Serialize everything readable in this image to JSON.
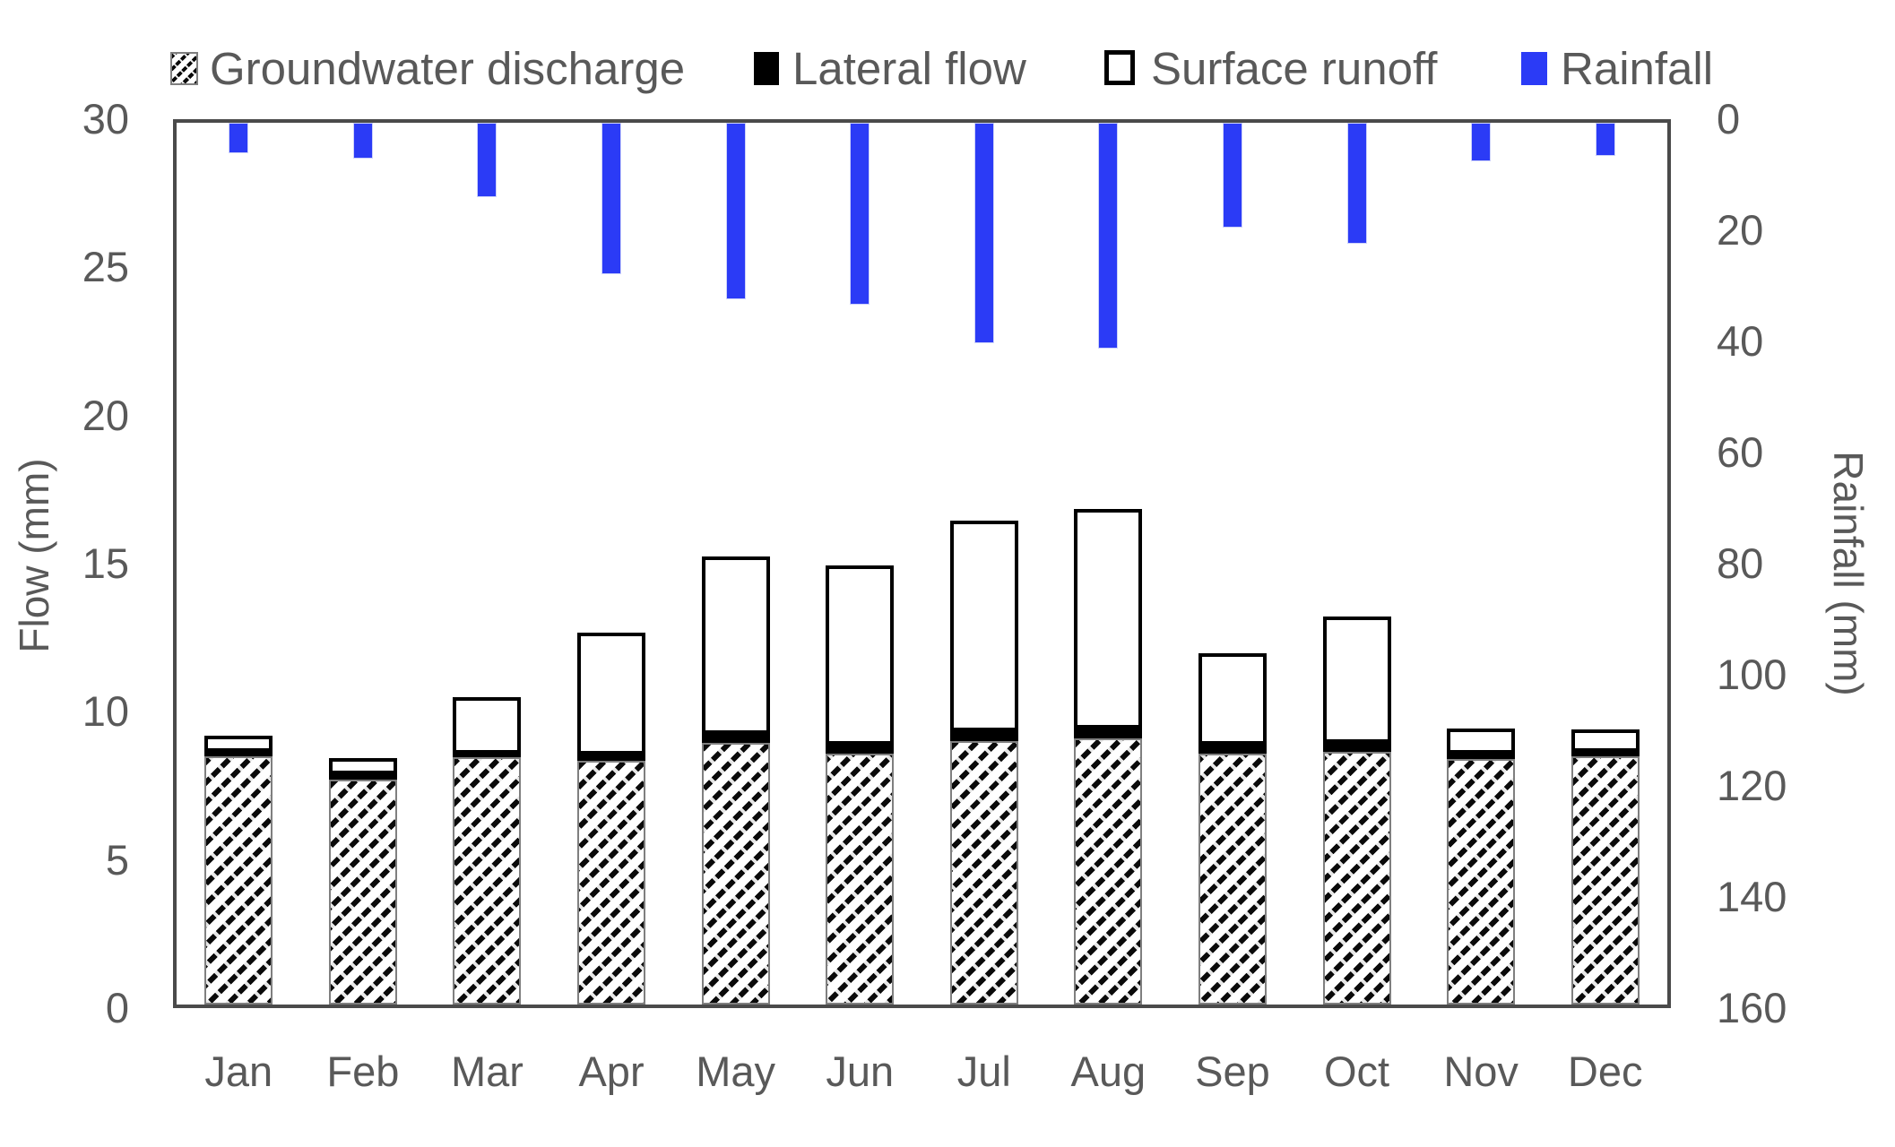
{
  "legend": [
    {
      "label": "Groundwater discharge",
      "swatch": "hatched"
    },
    {
      "label": "Lateral flow",
      "swatch": "black"
    },
    {
      "label": "Surface runoff",
      "swatch": "white-outlined"
    },
    {
      "label": "Rainfall",
      "swatch": "blue"
    }
  ],
  "axes": {
    "left": {
      "title": "Flow (mm)",
      "ticks": [
        0,
        5,
        10,
        15,
        20,
        25,
        30
      ]
    },
    "right": {
      "title": "Rainfall (mm)",
      "ticks": [
        0,
        20,
        40,
        60,
        80,
        100,
        120,
        140,
        160
      ],
      "inverted": true
    },
    "x": {
      "categories": [
        "Jan",
        "Feb",
        "Mar",
        "Apr",
        "May",
        "Jun",
        "Jul",
        "Aug",
        "Sep",
        "Oct",
        "Nov",
        "Dec"
      ]
    }
  },
  "colors": {
    "rainfall_blue": "#2B3BF6",
    "text_gray": "#595959",
    "axis_border_gray": "#4a4a4a",
    "groundwater_outline_gray": "#7f7f7f",
    "lateral_black": "#000000",
    "runoff_white": "#ffffff"
  },
  "chart_data": {
    "type": "bar",
    "title": "",
    "xlabel": "",
    "ylabel_left": "Flow (mm)",
    "ylabel_right": "Rainfall (mm)",
    "ylim_left": [
      0,
      30
    ],
    "ylim_right": [
      0,
      160
    ],
    "right_axis_inverted_rain_from_top": true,
    "grid": false,
    "legend_position": "top",
    "categories": [
      "Jan",
      "Feb",
      "Mar",
      "Apr",
      "May",
      "Jun",
      "Jul",
      "Aug",
      "Sep",
      "Oct",
      "Nov",
      "Dec"
    ],
    "series": [
      {
        "name": "Groundwater discharge",
        "axis": "left",
        "stack": "flow",
        "style": "hatched",
        "values": [
          8.45,
          7.65,
          8.4,
          8.3,
          8.9,
          8.55,
          8.95,
          9.05,
          8.55,
          8.6,
          8.35,
          8.45
        ]
      },
      {
        "name": "Lateral flow",
        "axis": "left",
        "stack": "flow",
        "style": "solid-black",
        "values": [
          0.15,
          0.2,
          0.15,
          0.2,
          0.3,
          0.3,
          0.35,
          0.35,
          0.3,
          0.3,
          0.2,
          0.15
        ]
      },
      {
        "name": "Surface runoff",
        "axis": "left",
        "stack": "flow",
        "style": "white-outlined",
        "values": [
          0.55,
          0.55,
          1.9,
          4.15,
          6.05,
          6.1,
          7.15,
          7.45,
          3.1,
          4.3,
          0.85,
          0.75
        ]
      },
      {
        "name": "Rainfall",
        "axis": "right",
        "style": "solid-blue",
        "hangs_from_top": true,
        "values": [
          5.5,
          6.5,
          13.5,
          27.5,
          32,
          33,
          40,
          41,
          19,
          22,
          7,
          6
        ]
      }
    ],
    "flow_totals": [
      9.15,
      8.4,
      10.45,
      12.65,
      15.25,
      14.95,
      16.45,
      16.85,
      11.95,
      13.2,
      9.4,
      9.35
    ]
  }
}
